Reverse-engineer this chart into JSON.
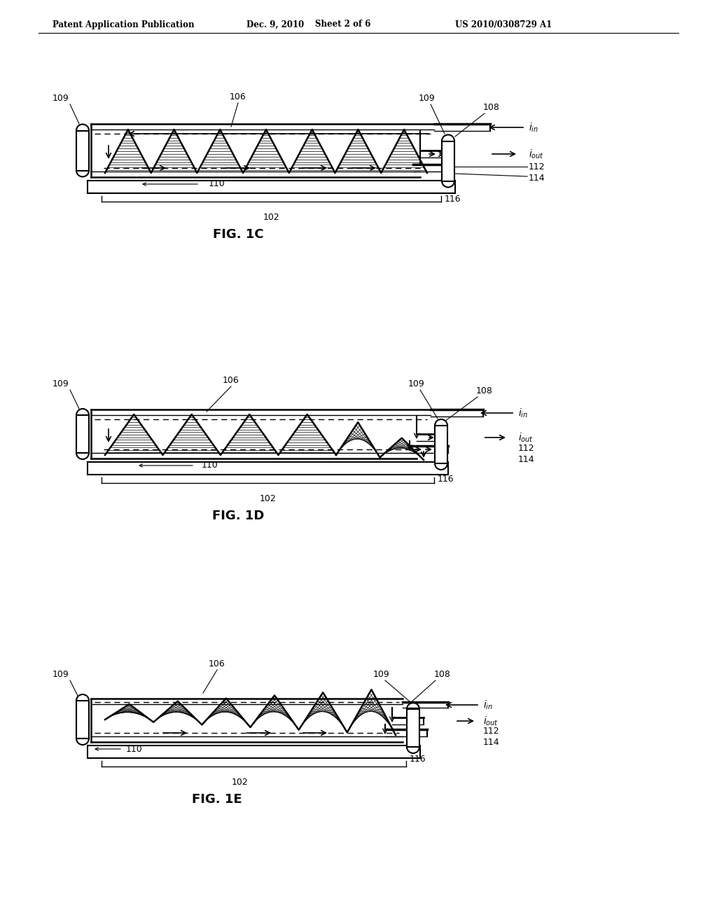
{
  "title_left": "Patent Application Publication",
  "title_date": "Dec. 9, 2010",
  "title_sheet": "Sheet 2 of 6",
  "title_patent": "US 2010/0308729 A1",
  "bg_color": "#ffffff",
  "line_color": "#000000"
}
